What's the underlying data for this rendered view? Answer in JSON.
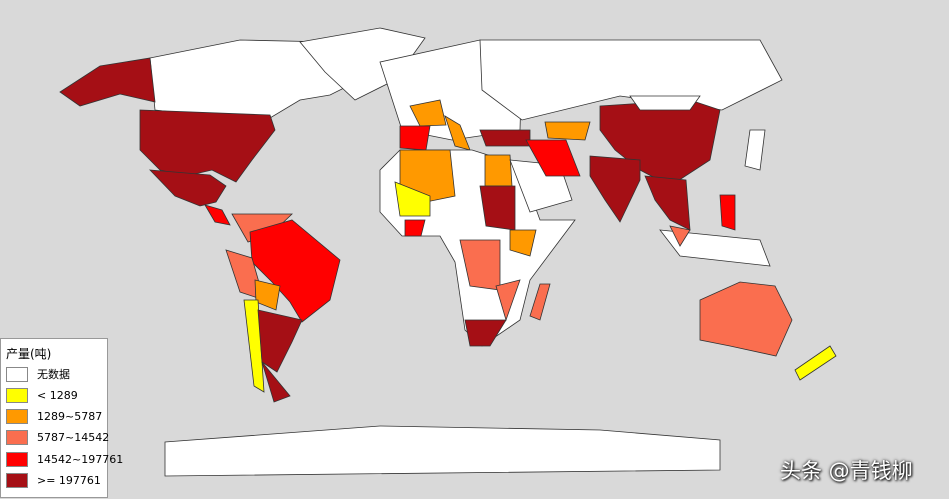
{
  "legend": {
    "title": "产量(吨)",
    "items": [
      {
        "label": "无数据",
        "color": "#ffffff"
      },
      {
        "label": "< 1289",
        "color": "#ffff00"
      },
      {
        "label": "1289~5787",
        "color": "#ff9900"
      },
      {
        "label": "5787~14542",
        "color": "#fa6e4f"
      },
      {
        "label": "14542~197761",
        "color": "#ff0000"
      },
      {
        "label": ">= 197761",
        "color": "#a50f15"
      }
    ]
  },
  "watermark": "头条 @青钱柳"
}
